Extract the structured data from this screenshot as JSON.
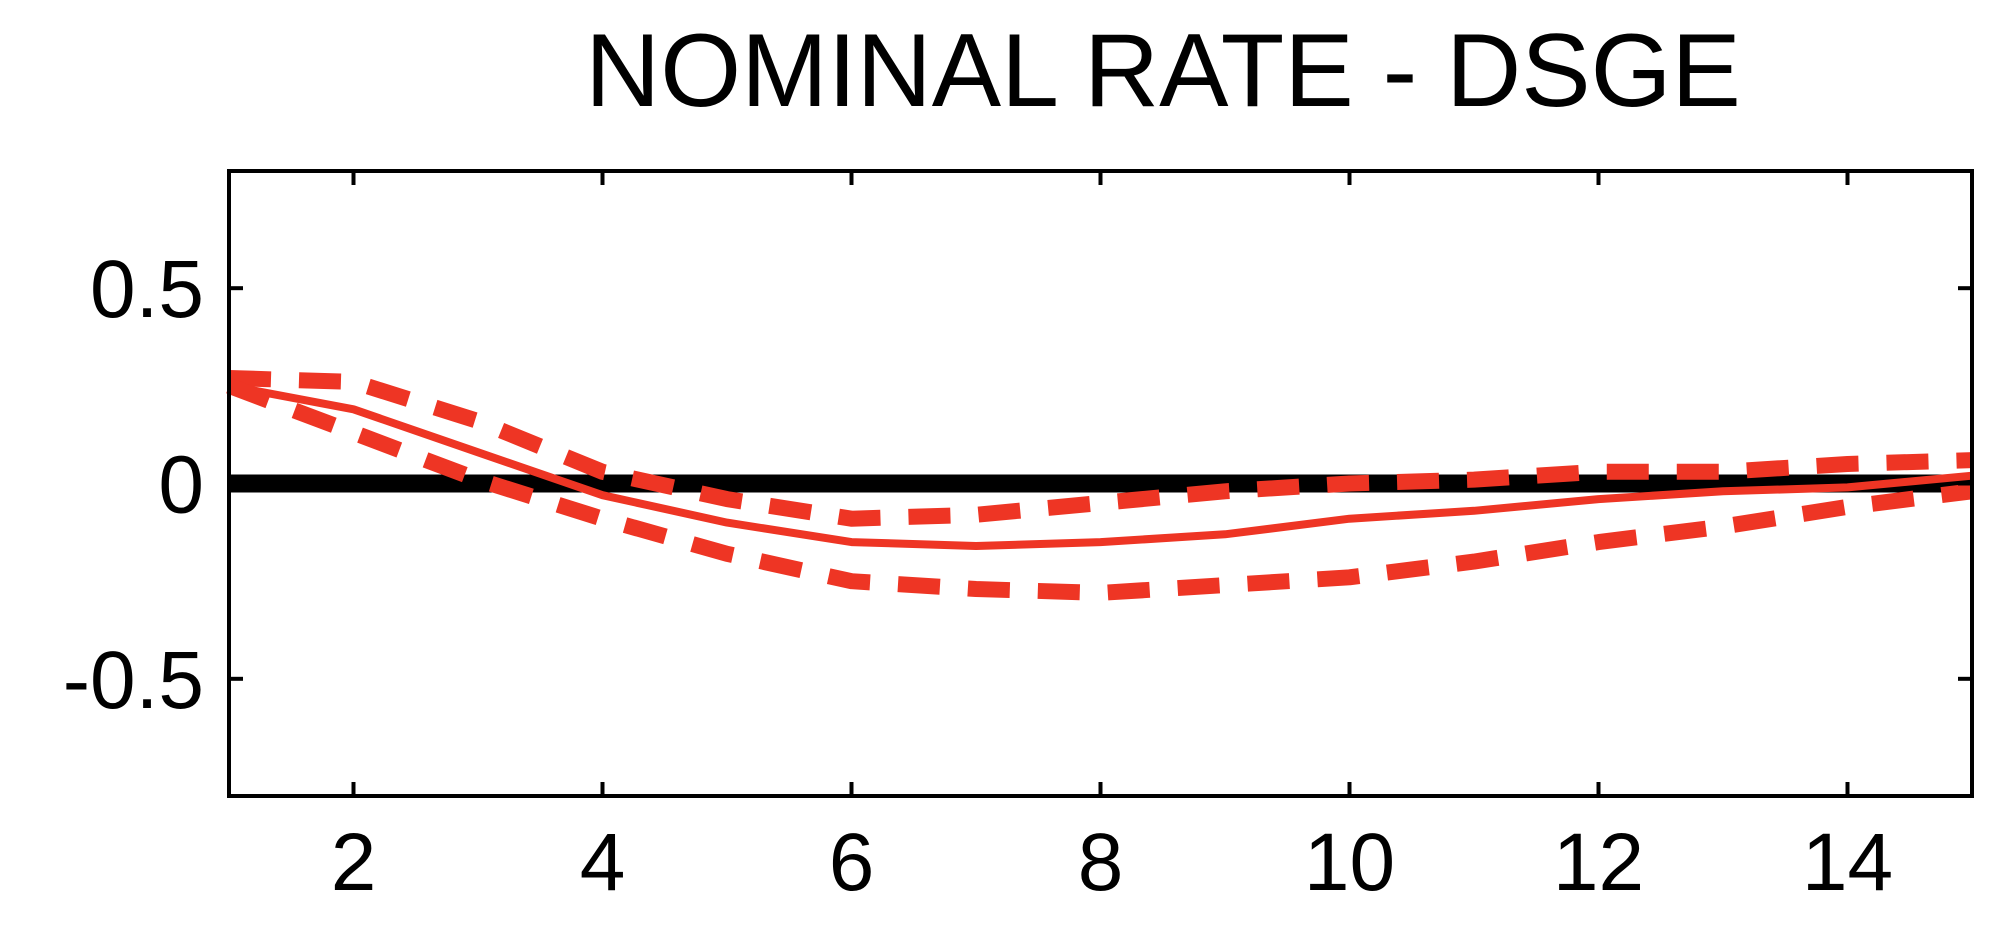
{
  "chart_data": {
    "type": "line",
    "title": "NOMINAL RATE - DSGE",
    "xlabel": "",
    "ylabel": "",
    "xlim": [
      1,
      15
    ],
    "ylim": [
      -0.8,
      0.8
    ],
    "x_ticks": [
      2,
      4,
      6,
      8,
      10,
      12,
      14
    ],
    "x_tick_labels": [
      "2",
      "4",
      "6",
      "8",
      "10",
      "12",
      "14"
    ],
    "y_ticks": [
      0.5,
      0,
      -0.5
    ],
    "y_tick_labels": [
      "0.5",
      "0",
      "-0.5"
    ],
    "grid": false,
    "legend": "none",
    "x": [
      1,
      2,
      3,
      4,
      5,
      6,
      7,
      8,
      9,
      10,
      11,
      12,
      13,
      14,
      15
    ],
    "series": [
      {
        "role": "median",
        "style": "solid",
        "color": "#ee3524",
        "values": [
          0.25,
          0.19,
          0.08,
          -0.03,
          -0.1,
          -0.15,
          -0.16,
          -0.15,
          -0.13,
          -0.09,
          -0.07,
          -0.04,
          -0.02,
          -0.01,
          0.02
        ]
      },
      {
        "role": "upper-band",
        "style": "dashed",
        "color": "#ee3524",
        "values": [
          0.27,
          0.26,
          0.16,
          0.03,
          -0.04,
          -0.09,
          -0.08,
          -0.05,
          -0.02,
          0.0,
          0.01,
          0.03,
          0.03,
          0.05,
          0.06
        ]
      },
      {
        "role": "lower-band",
        "style": "dashed",
        "color": "#ee3524",
        "values": [
          0.25,
          0.13,
          0.01,
          -0.09,
          -0.18,
          -0.25,
          -0.27,
          -0.28,
          -0.26,
          -0.24,
          -0.2,
          -0.15,
          -0.11,
          -0.06,
          -0.02
        ]
      }
    ],
    "zero_line": {
      "value": 0,
      "color": "#000000"
    }
  }
}
